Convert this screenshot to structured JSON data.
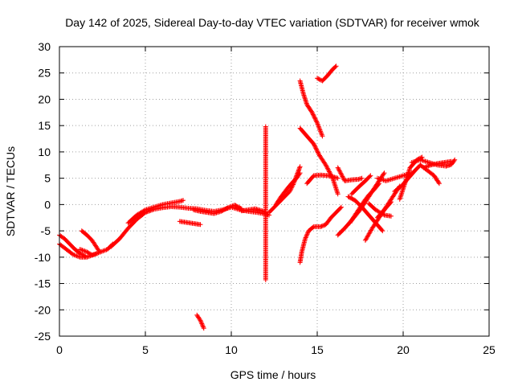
{
  "chart_data": {
    "type": "scatter",
    "title": "Day 142 of 2025, Sidereal Day-to-day VTEC variation (SDTVAR) for receiver wmok",
    "xlabel": "GPS time / hours",
    "ylabel": "SDTVAR / TECUs",
    "xlim": [
      0,
      25
    ],
    "ylim": [
      -25,
      30
    ],
    "xticks": [
      0,
      5,
      10,
      15,
      20,
      25
    ],
    "yticks": [
      -25,
      -20,
      -15,
      -10,
      -5,
      0,
      5,
      10,
      15,
      20,
      25,
      30
    ],
    "xtick_labels": [
      "0",
      "5",
      "10",
      "15",
      "20",
      "25"
    ],
    "ytick_labels": [
      "-25",
      "-20",
      "-15",
      "-10",
      "-5",
      "0",
      "5",
      "10",
      "15",
      "20",
      "25",
      "30"
    ],
    "grid": true,
    "marker": "plus",
    "color": "#ff0000",
    "segments": [
      {
        "points": [
          [
            0.0,
            -5.8
          ],
          [
            0.3,
            -6.5
          ],
          [
            0.6,
            -7.5
          ],
          [
            0.9,
            -8.5
          ],
          [
            1.2,
            -9.3
          ],
          [
            1.5,
            -9.8
          ]
        ]
      },
      {
        "points": [
          [
            0.0,
            -7.5
          ],
          [
            0.4,
            -8.5
          ],
          [
            0.8,
            -9.5
          ],
          [
            1.2,
            -10.0
          ],
          [
            1.6,
            -10.0
          ],
          [
            2.0,
            -9.5
          ],
          [
            2.4,
            -9.0
          ],
          [
            2.8,
            -8.5
          ],
          [
            3.1,
            -7.5
          ]
        ]
      },
      {
        "points": [
          [
            1.2,
            -8.5
          ],
          [
            1.6,
            -9.0
          ],
          [
            1.9,
            -9.6
          ],
          [
            2.2,
            -9.3
          ]
        ]
      },
      {
        "points": [
          [
            1.3,
            -5.0
          ],
          [
            1.6,
            -5.8
          ],
          [
            1.9,
            -6.8
          ],
          [
            2.1,
            -7.8
          ],
          [
            2.3,
            -8.8
          ]
        ]
      },
      {
        "points": [
          [
            3.0,
            -8.0
          ],
          [
            3.5,
            -6.5
          ],
          [
            4.0,
            -4.5
          ],
          [
            4.5,
            -2.8
          ],
          [
            5.0,
            -1.5
          ],
          [
            5.5,
            -0.9
          ],
          [
            6.0,
            -0.6
          ],
          [
            6.5,
            -0.4
          ],
          [
            7.0,
            -0.5
          ],
          [
            7.5,
            -0.7
          ],
          [
            8.0,
            -0.8
          ],
          [
            8.5,
            -1.1
          ],
          [
            9.0,
            -1.3
          ],
          [
            9.5,
            -1.0
          ],
          [
            10.0,
            -0.5
          ],
          [
            10.5,
            -1.0
          ],
          [
            11.0,
            -1.3
          ],
          [
            11.5,
            -1.5
          ],
          [
            12.0,
            -1.8
          ],
          [
            12.2,
            -2.0
          ]
        ]
      },
      {
        "points": [
          [
            4.0,
            -3.5
          ],
          [
            4.5,
            -2.0
          ],
          [
            5.0,
            -1.0
          ],
          [
            5.5,
            -0.5
          ],
          [
            6.0,
            0.0
          ],
          [
            6.5,
            0.3
          ],
          [
            7.0,
            0.6
          ],
          [
            7.2,
            0.8
          ]
        ]
      },
      {
        "points": [
          [
            7.0,
            -3.2
          ],
          [
            7.4,
            -3.4
          ],
          [
            7.8,
            -3.6
          ],
          [
            8.2,
            -3.8
          ]
        ]
      },
      {
        "points": [
          [
            7.8,
            -1.0
          ],
          [
            8.2,
            -1.3
          ],
          [
            8.6,
            -1.5
          ],
          [
            9.0,
            -1.7
          ],
          [
            9.4,
            -1.3
          ],
          [
            9.8,
            -0.6
          ],
          [
            10.2,
            -0.1
          ],
          [
            10.6,
            -0.8
          ]
        ]
      },
      {
        "points": [
          [
            10.6,
            -1.2
          ],
          [
            11.0,
            -1.0
          ],
          [
            11.4,
            -0.8
          ],
          [
            11.8,
            -1.2
          ],
          [
            12.0,
            -1.5
          ]
        ]
      },
      {
        "points": [
          [
            8.0,
            -21.0
          ],
          [
            8.2,
            -22.0
          ],
          [
            8.4,
            -23.5
          ]
        ]
      },
      {
        "points": [
          [
            12.0,
            14.8
          ],
          [
            12.0,
            9.3
          ],
          [
            12.0,
            -14.3
          ]
        ]
      },
      {
        "points": [
          [
            12.2,
            -1.5
          ],
          [
            12.5,
            -0.5
          ],
          [
            12.8,
            0.5
          ],
          [
            13.1,
            1.5
          ],
          [
            13.4,
            2.5
          ],
          [
            13.6,
            3.8
          ],
          [
            13.8,
            5.5
          ],
          [
            14.0,
            7.2
          ]
        ]
      },
      {
        "points": [
          [
            12.6,
            0.0
          ],
          [
            12.9,
            1.5
          ],
          [
            13.2,
            2.8
          ],
          [
            13.5,
            4.0
          ],
          [
            13.8,
            5.0
          ],
          [
            14.0,
            6.0
          ]
        ]
      },
      {
        "points": [
          [
            14.0,
            23.5
          ],
          [
            14.2,
            21.0
          ],
          [
            14.4,
            19.0
          ],
          [
            14.7,
            17.5
          ],
          [
            15.0,
            15.5
          ],
          [
            15.3,
            13.0
          ]
        ]
      },
      {
        "points": [
          [
            14.0,
            14.5
          ],
          [
            14.4,
            13.0
          ],
          [
            14.8,
            11.5
          ],
          [
            15.1,
            9.5
          ],
          [
            15.5,
            7.5
          ],
          [
            15.9,
            5.0
          ],
          [
            16.2,
            2.0
          ]
        ]
      },
      {
        "points": [
          [
            15.0,
            24.0
          ],
          [
            15.3,
            23.5
          ],
          [
            15.6,
            24.5
          ],
          [
            15.9,
            25.7
          ],
          [
            16.1,
            26.3
          ]
        ]
      },
      {
        "points": [
          [
            14.0,
            -11.0
          ],
          [
            14.1,
            -9.0
          ],
          [
            14.3,
            -6.5
          ],
          [
            14.5,
            -5.0
          ],
          [
            14.8,
            -4.2
          ],
          [
            15.2,
            -4.2
          ],
          [
            15.5,
            -3.8
          ],
          [
            15.8,
            -2.5
          ],
          [
            16.1,
            -1.5
          ],
          [
            16.4,
            -0.5
          ]
        ]
      },
      {
        "points": [
          [
            14.4,
            4.0
          ],
          [
            14.8,
            5.5
          ],
          [
            15.2,
            5.6
          ],
          [
            15.6,
            5.5
          ],
          [
            16.0,
            5.2
          ],
          [
            16.2,
            5.0
          ]
        ]
      },
      {
        "points": [
          [
            16.2,
            7.0
          ],
          [
            16.6,
            4.5
          ],
          [
            17.0,
            4.7
          ],
          [
            17.4,
            4.8
          ],
          [
            17.6,
            5.0
          ]
        ]
      },
      {
        "points": [
          [
            16.2,
            -5.8
          ],
          [
            16.6,
            -4.5
          ],
          [
            17.0,
            -3.0
          ],
          [
            17.5,
            -1.0
          ],
          [
            18.0,
            1.5
          ],
          [
            18.5,
            4.0
          ],
          [
            18.9,
            6.0
          ]
        ]
      },
      {
        "points": [
          [
            16.8,
            1.5
          ],
          [
            17.2,
            0.8
          ],
          [
            17.6,
            -0.5
          ],
          [
            18.0,
            -2.0
          ],
          [
            18.4,
            -3.5
          ],
          [
            18.8,
            -5.0
          ]
        ]
      },
      {
        "points": [
          [
            16.9,
            -3.5
          ],
          [
            17.3,
            -1.5
          ],
          [
            17.7,
            0.5
          ],
          [
            18.0,
            1.8
          ],
          [
            18.3,
            2.8
          ],
          [
            18.6,
            4.0
          ]
        ]
      },
      {
        "points": [
          [
            17.8,
            -6.8
          ],
          [
            18.2,
            -4.5
          ],
          [
            18.6,
            -2.5
          ],
          [
            19.0,
            -0.5
          ],
          [
            19.4,
            1.5
          ],
          [
            19.8,
            3.5
          ]
        ]
      },
      {
        "points": [
          [
            17.0,
            2.0
          ],
          [
            17.4,
            3.3
          ],
          [
            17.8,
            4.5
          ],
          [
            18.1,
            5.5
          ]
        ]
      },
      {
        "points": [
          [
            18.0,
            0.2
          ],
          [
            18.4,
            -1.0
          ],
          [
            18.9,
            -2.0
          ],
          [
            19.3,
            -2.2
          ]
        ]
      },
      {
        "points": [
          [
            18.5,
            -2.5
          ],
          [
            18.9,
            -1.0
          ],
          [
            19.3,
            0.5
          ]
        ]
      },
      {
        "points": [
          [
            18.5,
            5.0
          ],
          [
            19.0,
            4.5
          ],
          [
            19.5,
            5.0
          ],
          [
            20.0,
            5.5
          ],
          [
            20.5,
            6.0
          ]
        ]
      },
      {
        "points": [
          [
            19.5,
            2.5
          ],
          [
            19.9,
            3.5
          ],
          [
            20.3,
            5.0
          ],
          [
            20.7,
            6.5
          ],
          [
            21.0,
            7.5
          ]
        ]
      },
      {
        "points": [
          [
            19.8,
            1.0
          ],
          [
            20.4,
            7.0
          ],
          [
            20.8,
            8.5
          ],
          [
            21.1,
            9.0
          ]
        ]
      },
      {
        "points": [
          [
            21.0,
            7.5
          ],
          [
            21.4,
            6.5
          ],
          [
            21.8,
            5.5
          ],
          [
            22.1,
            4.0
          ]
        ]
      },
      {
        "points": [
          [
            20.5,
            8.0
          ],
          [
            21.0,
            8.5
          ],
          [
            21.5,
            8.0
          ],
          [
            22.0,
            7.5
          ],
          [
            22.5,
            7.3
          ],
          [
            22.8,
            7.6
          ],
          [
            23.0,
            8.5
          ]
        ]
      },
      {
        "points": [
          [
            21.2,
            7.0
          ],
          [
            21.6,
            7.5
          ],
          [
            22.0,
            7.8
          ],
          [
            22.4,
            8.0
          ],
          [
            22.8,
            8.2
          ]
        ]
      }
    ]
  }
}
